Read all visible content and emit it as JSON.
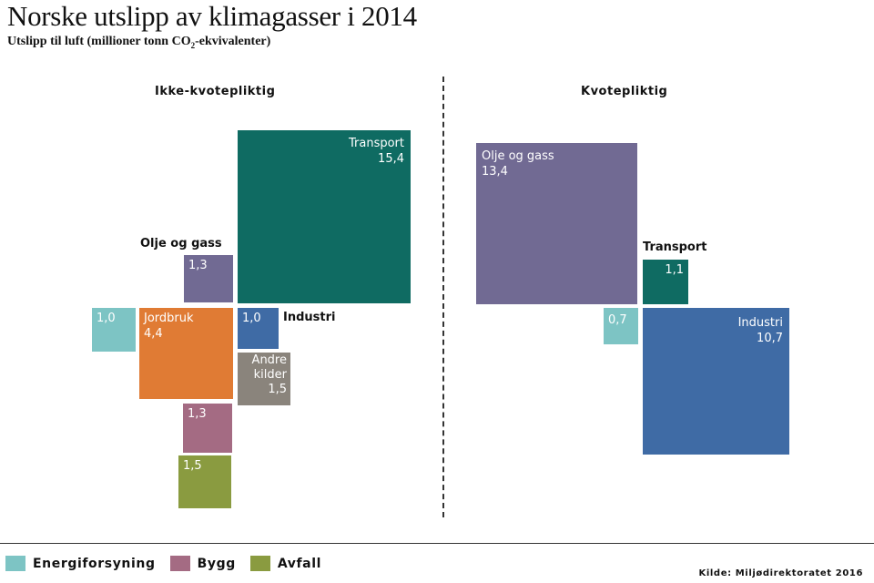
{
  "title": "Norske utslipp av klimagasser i 2014",
  "subtitle": {
    "before": "Utslipp til luft (millioner tonn CO",
    "sub": "2",
    "after": "-ekvivalenter)"
  },
  "colors": {
    "transport": "#0f6b62",
    "olje_og_gass": "#716a93",
    "energiforsyning": "#7dc4c4",
    "jordbruk": "#e07b34",
    "industri": "#3f6ba5",
    "andre_kilder": "#8a847c",
    "bygg": "#a46b83",
    "avfall": "#8a9b40"
  },
  "legend": [
    {
      "label": "Energiforsyning",
      "color": "#7dc4c4"
    },
    {
      "label": "Bygg",
      "color": "#a46b83"
    },
    {
      "label": "Avfall",
      "color": "#8a9b40"
    }
  ],
  "source": "Kilde: Miljødirektoratet 2016",
  "chart_data": {
    "type": "treemap-squares",
    "title": "Norske utslipp av klimagasser i 2014",
    "unit": "millioner tonn CO2-ekvivalenter",
    "groups": [
      {
        "name": "Ikke-kvotepliktig",
        "items": [
          {
            "name": "Transport",
            "value": 15.4,
            "value_text": "15,4"
          },
          {
            "name": "Olje og gass",
            "value": 1.3,
            "value_text": "1,3"
          },
          {
            "name": "Energiforsyning",
            "value": 1.0,
            "value_text": "1,0"
          },
          {
            "name": "Jordbruk",
            "value": 4.4,
            "value_text": "4,4"
          },
          {
            "name": "Industri",
            "value": 1.0,
            "value_text": "1,0"
          },
          {
            "name": "Andre kilder",
            "label_lines": [
              "Andre",
              "kilder"
            ],
            "value": 1.5,
            "value_text": "1,5"
          },
          {
            "name": "Bygg",
            "value": 1.3,
            "value_text": "1,3"
          },
          {
            "name": "Avfall",
            "value": 1.5,
            "value_text": "1,5"
          }
        ]
      },
      {
        "name": "Kvotepliktig",
        "items": [
          {
            "name": "Olje og gass",
            "value": 13.4,
            "value_text": "13,4"
          },
          {
            "name": "Transport",
            "value": 1.1,
            "value_text": "1,1"
          },
          {
            "name": "Energiforsyning",
            "value": 0.7,
            "value_text": "0,7"
          },
          {
            "name": "Industri",
            "value": 10.7,
            "value_text": "10,7"
          }
        ]
      }
    ]
  }
}
